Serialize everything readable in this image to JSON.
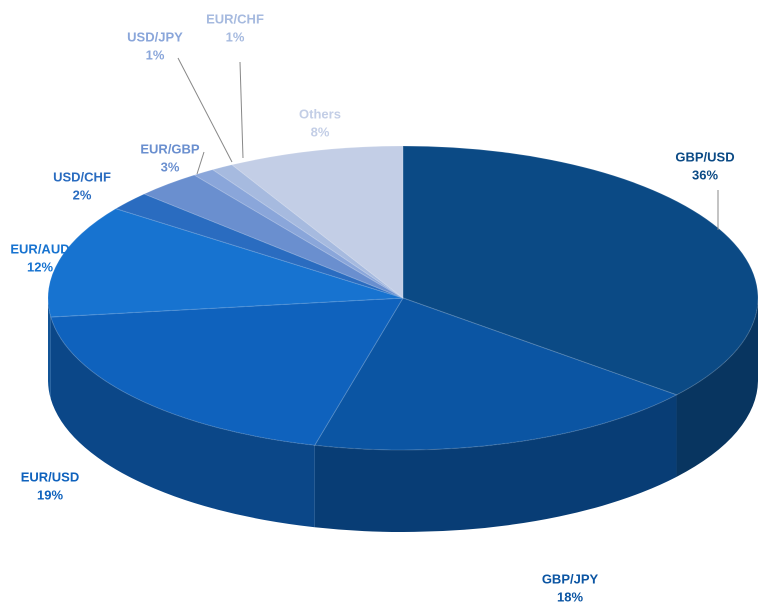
{
  "chart_data": {
    "type": "pie",
    "categories": [
      "GBP/USD",
      "GBP/JPY",
      "EUR/USD",
      "EUR/AUD",
      "USD/CHF",
      "EUR/GBP",
      "USD/JPY",
      "EUR/CHF",
      "Others"
    ],
    "values": [
      36,
      18,
      19,
      12,
      2,
      3,
      1,
      1,
      8
    ],
    "value_labels": [
      "36%",
      "18%",
      "19%",
      "12%",
      "2%",
      "3%",
      "1%",
      "1%",
      "8%"
    ],
    "colors": [
      "#0b4a85",
      "#0b55a3",
      "#0f62bd",
      "#1773d0",
      "#2a6cc0",
      "#6a8fcf",
      "#8aa6da",
      "#a6badf",
      "#c3cee6"
    ]
  }
}
